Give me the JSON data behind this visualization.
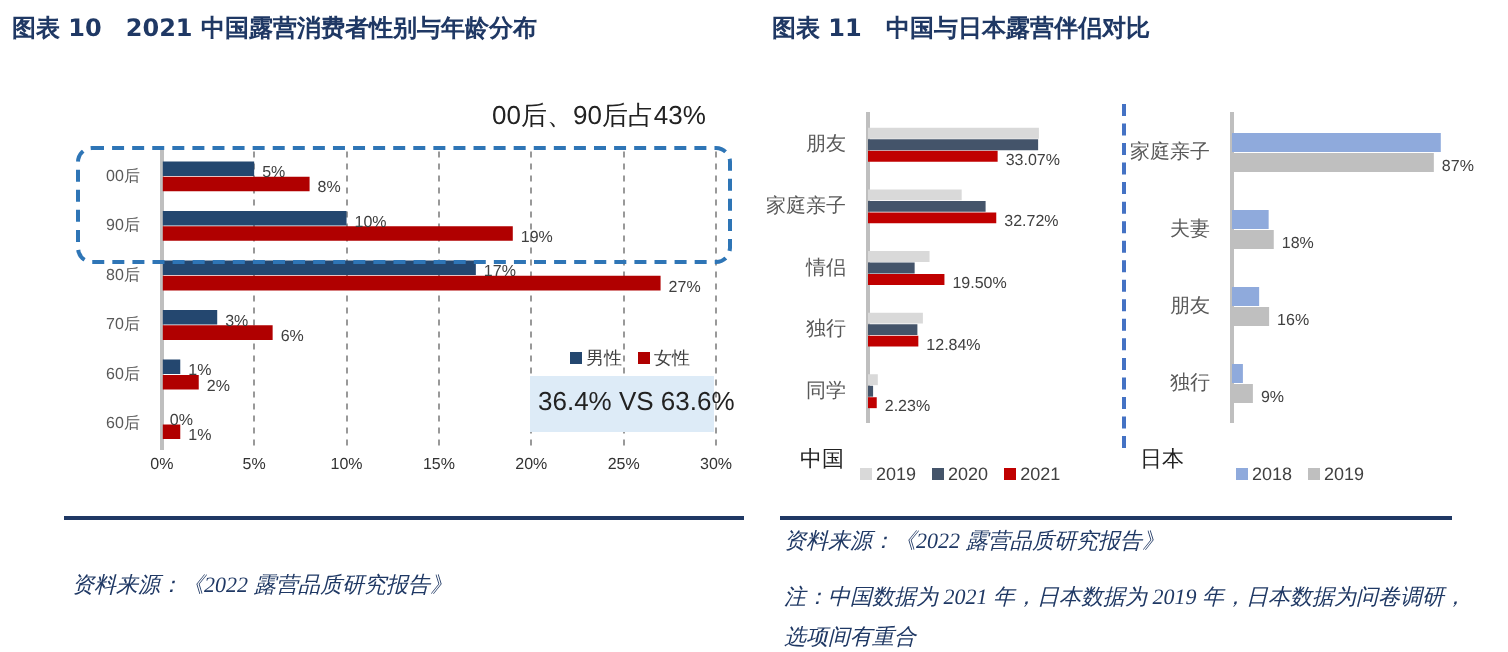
{
  "chart_data": [
    {
      "type": "bar",
      "orientation": "horizontal",
      "title": "图表 10　2021 中国露营消费者性别与年龄分布",
      "categories": [
        "00后",
        "90后",
        "80后",
        "70后",
        "60后",
        "60后"
      ],
      "series": [
        {
          "name": "男性",
          "color": "#24476f",
          "values": [
            5,
            10,
            17,
            3,
            1,
            0
          ],
          "value_labels": [
            "5%",
            "10%",
            "17%",
            "3%",
            "1%",
            "0%"
          ]
        },
        {
          "name": "女性",
          "color": "#b00000",
          "values": [
            8,
            19,
            27,
            6,
            2,
            1
          ],
          "value_labels": [
            "8%",
            "19%",
            "27%",
            "6%",
            "2%",
            "1%"
          ]
        }
      ],
      "xlim": [
        0,
        30
      ],
      "xticks": [
        {
          "value": 0,
          "label": "0%"
        },
        {
          "value": 5,
          "label": "5%"
        },
        {
          "value": 10,
          "label": "10%"
        },
        {
          "value": 15,
          "label": "15%"
        },
        {
          "value": 20,
          "label": "20%"
        },
        {
          "value": 25,
          "label": "25%"
        },
        {
          "value": 30,
          "label": "30%"
        }
      ],
      "grid": "x",
      "legend": "right",
      "annotations": [
        "00后、90后占43%",
        "36.4% VS 63.6%",
        "资料来源：《2022 露营品质研究报告》"
      ]
    },
    {
      "type": "bar",
      "orientation": "horizontal",
      "title": "图表 11　中国与日本露营伴侣对比",
      "categories": [
        "朋友",
        "家庭亲子",
        "情侣",
        "独行",
        "同学"
      ],
      "series": [
        {
          "name": "2019",
          "color": "#d9d9d9",
          "values": [
            43.6,
            23.9,
            15.7,
            14.0,
            2.5
          ]
        },
        {
          "name": "2020",
          "color": "#44546a",
          "values": [
            43.4,
            30.0,
            11.9,
            12.6,
            1.3
          ]
        },
        {
          "name": "2021",
          "color": "#c00000",
          "values": [
            33.07,
            32.72,
            19.5,
            12.84,
            2.23
          ],
          "value_labels": [
            "33.07%",
            "32.72%",
            "19.50%",
            "12.84%",
            "2.23%"
          ]
        }
      ],
      "tick_labels": "y",
      "grid": false,
      "legend": "bottom",
      "annotations": [
        "中国",
        "资料来源：《2022 露营品质研究报告》",
        "注：中国数据为 2021 年，日本数据为 2019 年，日本数据为问卷调研，选项间有重合"
      ]
    },
    {
      "type": "bar",
      "orientation": "horizontal",
      "categories": [
        "家庭亲子",
        "夫妻",
        "朋友",
        "独行"
      ],
      "series": [
        {
          "name": "2018",
          "color": "#8faadc",
          "values": [
            90,
            15.8,
            11.7,
            4.7
          ]
        },
        {
          "name": "2019",
          "color": "#bfbfbf",
          "values": [
            87,
            18,
            16,
            9
          ],
          "value_labels": [
            "87%",
            "18%",
            "16%",
            "9%"
          ]
        }
      ],
      "tick_labels": "y",
      "grid": false,
      "legend": "bottom",
      "annotations": [
        "日本"
      ]
    }
  ]
}
